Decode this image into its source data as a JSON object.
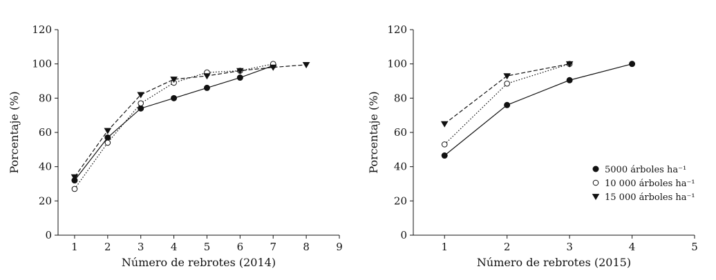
{
  "chart_data": [
    {
      "type": "line",
      "xlabel": "Número de rebrotes (2014)",
      "ylabel": "Porcentaje (%)",
      "xlim": [
        0.5,
        9
      ],
      "ylim": [
        0,
        120
      ],
      "xticks": [
        1,
        2,
        3,
        4,
        5,
        6,
        7,
        8,
        9
      ],
      "yticks": [
        0,
        20,
        40,
        60,
        80,
        100,
        120
      ],
      "grid": false,
      "series": [
        {
          "name": "5000 árboles ha⁻¹",
          "marker": "filled-circle",
          "line": "solid",
          "x": [
            1,
            2,
            3,
            4,
            5,
            6,
            7
          ],
          "values": [
            32,
            57,
            74,
            80,
            86,
            92,
            99
          ]
        },
        {
          "name": "10 000 árboles ha⁻¹",
          "marker": "open-circle",
          "line": "dotted",
          "x": [
            1,
            2,
            3,
            4,
            5,
            6,
            7
          ],
          "values": [
            27,
            54,
            77,
            89,
            95,
            96,
            100
          ]
        },
        {
          "name": "15 000 árboles ha⁻¹",
          "marker": "filled-triangle-down",
          "line": "dashed",
          "x": [
            1,
            2,
            3,
            4,
            5,
            6,
            7,
            8
          ],
          "values": [
            34,
            61,
            82,
            91,
            93,
            96,
            98,
            99.5
          ]
        }
      ]
    },
    {
      "type": "line",
      "xlabel": "Número de rebrotes (2015)",
      "ylabel": "Porcentaje (%)",
      "xlim": [
        0.5,
        5
      ],
      "ylim": [
        0,
        120
      ],
      "xticks": [
        1,
        2,
        3,
        4,
        5
      ],
      "yticks": [
        0,
        20,
        40,
        60,
        80,
        100,
        120
      ],
      "grid": false,
      "legend_position": "right",
      "series": [
        {
          "name": "5000 árboles ha⁻¹",
          "marker": "filled-circle",
          "line": "solid",
          "x": [
            1,
            2,
            3,
            4
          ],
          "values": [
            46.5,
            76,
            90.5,
            100
          ]
        },
        {
          "name": "10 000 árboles ha⁻¹",
          "marker": "open-circle",
          "line": "dotted",
          "x": [
            1,
            2,
            3
          ],
          "values": [
            53,
            88.5,
            100
          ]
        },
        {
          "name": "15 000 árboles ha⁻¹",
          "marker": "filled-triangle-down",
          "line": "dashed",
          "x": [
            1,
            2,
            3
          ],
          "values": [
            65,
            93,
            100
          ]
        }
      ]
    }
  ],
  "colors": {
    "ink": "#111111",
    "marker_fill_open": "#ffffff"
  }
}
